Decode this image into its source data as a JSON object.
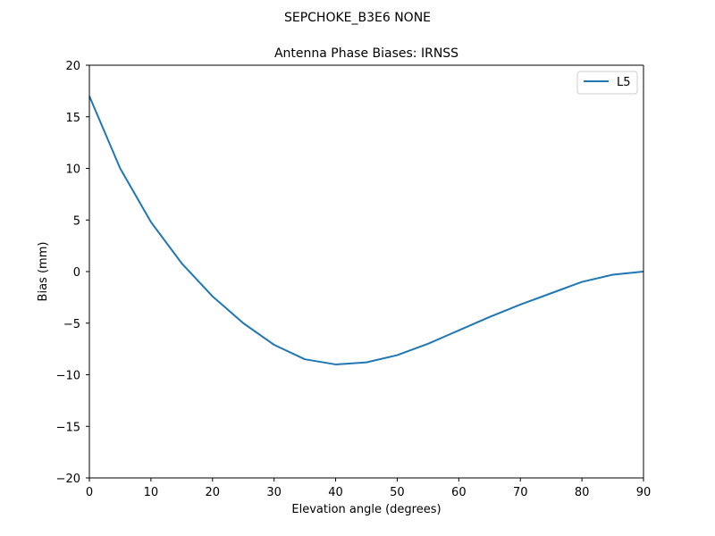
{
  "figure": {
    "suptitle": "SEPCHOKE_B3E6   NONE"
  },
  "chart_data": {
    "type": "line",
    "title": "Antenna Phase Biases: IRNSS",
    "xlabel": "Elevation angle (degrees)",
    "ylabel": "Bias (mm)",
    "xlim": [
      0,
      90
    ],
    "ylim": [
      -20,
      20
    ],
    "xticks": [
      0,
      10,
      20,
      30,
      40,
      50,
      60,
      70,
      80,
      90
    ],
    "xtick_labels": [
      "0",
      "10",
      "20",
      "30",
      "40",
      "50",
      "60",
      "70",
      "80",
      "90"
    ],
    "yticks": [
      -20,
      -15,
      -10,
      -5,
      0,
      5,
      10,
      15,
      20
    ],
    "ytick_labels": [
      "−20",
      "−15",
      "−10",
      "−5",
      "0",
      "5",
      "10",
      "15",
      "20"
    ],
    "grid": false,
    "legend_position": "top-right",
    "x": [
      0,
      5,
      10,
      15,
      20,
      25,
      30,
      35,
      40,
      45,
      50,
      55,
      60,
      65,
      70,
      75,
      80,
      85,
      90
    ],
    "series": [
      {
        "name": "L5",
        "color": "#1f77b4",
        "values": [
          17.0,
          10.0,
          4.8,
          0.8,
          -2.4,
          -5.0,
          -7.1,
          -8.5,
          -9.0,
          -8.8,
          -8.1,
          -7.0,
          -5.7,
          -4.4,
          -3.2,
          -2.1,
          -1.0,
          -0.3,
          0.0
        ]
      }
    ]
  }
}
